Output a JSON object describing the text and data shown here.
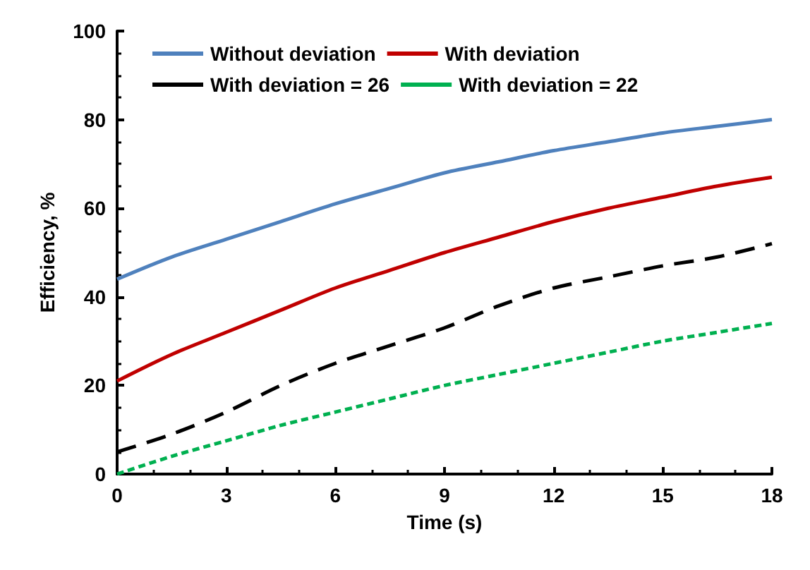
{
  "chart_data": {
    "type": "line",
    "xlabel": "Time (s)",
    "ylabel": "Efficiency, %",
    "x": [
      0,
      1.5,
      3,
      4.5,
      6,
      7.5,
      9,
      10.5,
      12,
      13.5,
      15,
      16.5,
      18
    ],
    "series": [
      {
        "name": "Without deviation",
        "color": "#4f81bd",
        "values": [
          44,
          49,
          53,
          57,
          61,
          64.5,
          68,
          70.5,
          73,
          75,
          77,
          78.5,
          80
        ]
      },
      {
        "name": "With deviation",
        "color": "#c00000",
        "values": [
          21,
          27,
          32,
          37,
          42,
          46,
          50,
          53.5,
          57,
          60,
          62.5,
          65,
          67
        ]
      },
      {
        "name": "With deviation = 26",
        "color": "#000000",
        "line_style": "dashed",
        "values": [
          5,
          9,
          14,
          20,
          25,
          29,
          33,
          38,
          42,
          44.5,
          47,
          49,
          52
        ]
      },
      {
        "name": "With deviation = 22",
        "color": "#00b050",
        "line_style": "dotted",
        "values": [
          0,
          4,
          7.5,
          11,
          14,
          17,
          20,
          22.5,
          25,
          27.5,
          30,
          32,
          34
        ]
      }
    ],
    "xlim": [
      0,
      18
    ],
    "xticks": [
      0,
      3,
      6,
      9,
      12,
      15,
      18
    ],
    "ylim": [
      0,
      100
    ],
    "yticks": [
      0,
      20,
      40,
      60,
      80,
      100
    ],
    "grid": false,
    "legend": "top",
    "marker": "none"
  }
}
